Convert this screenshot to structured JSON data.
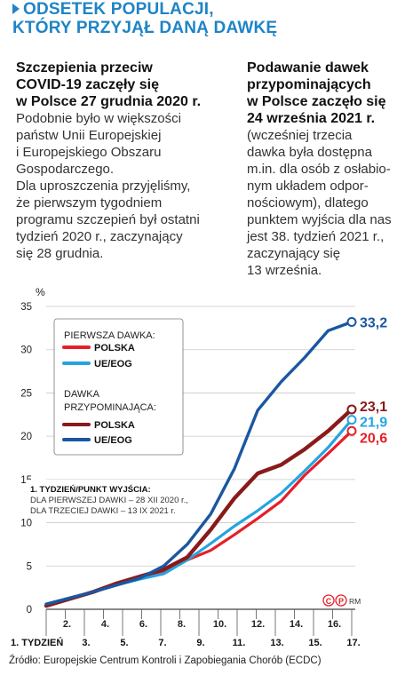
{
  "title": {
    "line1": "ODSETEK POPULACJI,",
    "line2": "KTÓRY PRZYJĄŁ DANĄ DAWKĘ"
  },
  "left_column": {
    "lead": [
      "Szczepienia przeciw",
      "COVID-19 zaczęły się",
      "w Polsce 27 grudnia 2020 r."
    ],
    "body": [
      "Podobnie było w większości",
      "państw Unii Europejskiej",
      "i Europejskiego Obszaru",
      "Gospodarczego.",
      "Dla uproszczenia przyjęliśmy,",
      "że pierwszym tygodniem",
      "programu szczepień był ostatni",
      "tydzień 2020 r., zaczynający",
      "się 28 grudnia."
    ]
  },
  "right_column": {
    "lead": [
      "Podawanie dawek",
      "przypominających",
      "w Polsce zaczęło się",
      "24 września 2021 r."
    ],
    "body": [
      "(wcześniej trzecia",
      "dawka była dostępna",
      "m.in. dla osób z osłabio-",
      "nym układem odpor-",
      "nościowym), dlatego",
      "punktem wyjścia dla nas",
      "jest 38. tydzień 2021 r.,",
      "zaczynający się",
      "13 września."
    ]
  },
  "chart_data": {
    "type": "line",
    "ylabel": "%",
    "ylim": [
      0,
      35
    ],
    "yticks": [
      0,
      5,
      10,
      15,
      20,
      25,
      30,
      35
    ],
    "x": [
      1,
      2,
      3,
      4,
      5,
      6,
      7,
      8,
      9,
      10,
      11,
      12,
      13,
      14,
      15,
      16,
      17
    ],
    "x_tick_labels_lower": [
      "1. TYDZIEŃ",
      "3.",
      "5.",
      "7.",
      "9.",
      "11.",
      "13.",
      "15.",
      "17."
    ],
    "x_tick_labels_upper": [
      "2.",
      "4.",
      "6.",
      "8.",
      "10.",
      "12.",
      "14.",
      "16."
    ],
    "grid": "horizontal",
    "legend": {
      "group1_title": "PIERWSZA DAWKA:",
      "group2_title_line1": "DAWKA",
      "group2_title_line2": "PRZYPOMINAJĄCA:",
      "position": "top-left"
    },
    "series": [
      {
        "name": "POLSKA",
        "group": "PIERWSZA DAWKA",
        "color": "#e4202a",
        "values": [
          0.4,
          1.3,
          2.0,
          2.9,
          3.6,
          4.4,
          5.7,
          6.8,
          8.6,
          10.5,
          12.5,
          15.5,
          18.0,
          20.6
        ],
        "x": [
          1,
          2,
          3,
          4,
          5,
          6,
          7,
          8,
          9,
          10,
          11,
          12,
          13,
          14
        ],
        "end_label": "20,6"
      },
      {
        "name": "UE/EOG",
        "group": "PIERWSZA DAWKA",
        "color": "#27a4df",
        "values": [
          0.4,
          1.3,
          2.0,
          2.8,
          3.5,
          4.1,
          5.7,
          7.6,
          9.6,
          11.4,
          13.4,
          16.0,
          18.7,
          21.9
        ],
        "x": [
          1,
          2,
          3,
          4,
          5,
          6,
          7,
          8,
          9,
          10,
          11,
          12,
          13,
          14
        ],
        "end_label": "21,9"
      },
      {
        "name": "POLSKA",
        "group": "DAWKA PRZYPOMINAJĄCA",
        "color": "#8a1a1a",
        "values": [
          0.4,
          1.2,
          2.0,
          3.0,
          3.8,
          4.6,
          6.0,
          9.2,
          12.8,
          15.7,
          16.7,
          18.5,
          20.6,
          23.1
        ],
        "x": [
          1,
          2,
          3,
          4,
          5,
          6,
          7,
          8,
          9,
          10,
          11,
          12,
          13,
          14
        ],
        "end_label": "23,1"
      },
      {
        "name": "UE/EOG",
        "group": "DAWKA PRZYPOMINAJĄCA",
        "color": "#1a57a0",
        "values": [
          0.6,
          1.3,
          2.0,
          2.8,
          3.6,
          5.0,
          7.5,
          11.0,
          16.2,
          23.0,
          26.3,
          29.1,
          32.2,
          33.2
        ],
        "x": [
          1,
          2,
          3,
          4,
          5,
          6,
          7,
          8,
          9,
          10,
          11,
          12,
          13,
          14
        ],
        "end_label": "33,2"
      }
    ],
    "annotation": {
      "title": "1. TYDZIEŃ/PUNKT WYJŚCIA:",
      "line1": "DLA PIERWSZEJ DAWKI – 28 XII 2020 r.,",
      "line2": "DLA TRZECIEJ DAWKI – 13 IX 2021 r."
    },
    "credit": "RM"
  },
  "source": "Źródło: Europejskie Centrum Kontroli i Zapobiegania Chorób (ECDC)"
}
